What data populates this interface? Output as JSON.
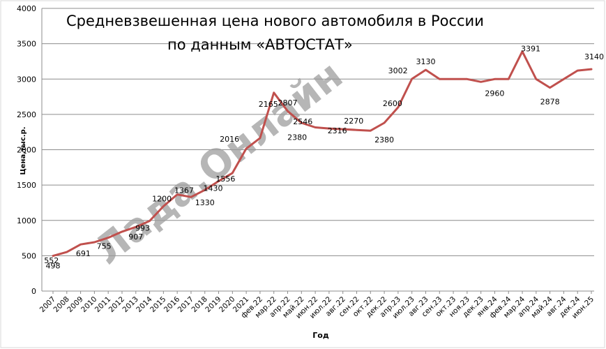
{
  "title_line1": "Средневзвешенная цена нового автомобиля в России",
  "title_line2": "по данным «АВТОСТАТ»",
  "watermark": "Лада.Онлайн",
  "chart_data": {
    "type": "line",
    "title": "Средневзвешенная цена нового автомобиля в России по данным «АВТОСТАТ»",
    "xlabel": "Год",
    "ylabel": "Цена,тыс.р.",
    "ylim": [
      0,
      4000
    ],
    "yticks": [
      0,
      500,
      1000,
      1500,
      2000,
      2500,
      3000,
      3500,
      4000
    ],
    "grid": true,
    "legend": "none",
    "line_color": "#c0504d",
    "categories": [
      "2007",
      "2008",
      "2009",
      "2010",
      "2011",
      "2012",
      "2013",
      "2014",
      "2015",
      "2016",
      "2017",
      "2018",
      "2019",
      "2020",
      "2021",
      "фев.22",
      "мар.22",
      "апр.22",
      "май.22",
      "июн.22",
      "июл.22",
      "авг.22",
      "сен.22",
      "окт.22",
      "дек.22",
      "апр.23",
      "июл.23",
      "авг.23",
      "сен.23",
      "окт.23",
      "ноя.23",
      "дек.23",
      "янв.24",
      "фев.24",
      "мар.24",
      "апр.24",
      "май.24",
      "авг.24",
      "дек.24",
      "июн.25"
    ],
    "values": [
      498,
      552,
      660,
      691,
      755,
      840,
      907,
      993,
      1200,
      1367,
      1330,
      1430,
      1556,
      1670,
      2016,
      2165,
      2807,
      2546,
      2380,
      2316,
      2300,
      2290,
      2280,
      2270,
      2380,
      2600,
      3002,
      3130,
      3000,
      3000,
      3000,
      2960,
      3000,
      3000,
      3391,
      3000,
      2878,
      3000,
      3120,
      3140
    ],
    "data_labels": [
      {
        "i": 1,
        "text": "498"
      },
      {
        "i": 2,
        "text": "552"
      },
      {
        "i": 4,
        "text": "691"
      },
      {
        "i": 5,
        "text": "755"
      },
      {
        "i": 7,
        "text": "907"
      },
      {
        "i": 8,
        "text": "993"
      },
      {
        "i": 10,
        "text": "1200"
      },
      {
        "i": 11,
        "text": "1367"
      },
      {
        "i": 12,
        "text": "1330"
      },
      {
        "i": 13,
        "text": "1430"
      },
      {
        "i": 14,
        "text": "1556"
      },
      {
        "i": 15,
        "text": "2016"
      },
      {
        "i": 17,
        "text": "2165"
      },
      {
        "i": 18,
        "text": "2807"
      },
      {
        "i": 19,
        "text": "2546"
      },
      {
        "i": 20,
        "text": "2380"
      },
      {
        "i": 22,
        "text": "2316"
      },
      {
        "i": 24,
        "text": "2270"
      },
      {
        "i": 25,
        "text": "2380"
      },
      {
        "i": 26,
        "text": "2600"
      },
      {
        "i": 27,
        "text": "3002"
      },
      {
        "i": 28,
        "text": "3130"
      },
      {
        "i": 33,
        "text": "2960"
      },
      {
        "i": 35,
        "text": "3391"
      },
      {
        "i": 37,
        "text": "2878"
      },
      {
        "i": 40,
        "text": "3140"
      }
    ]
  }
}
